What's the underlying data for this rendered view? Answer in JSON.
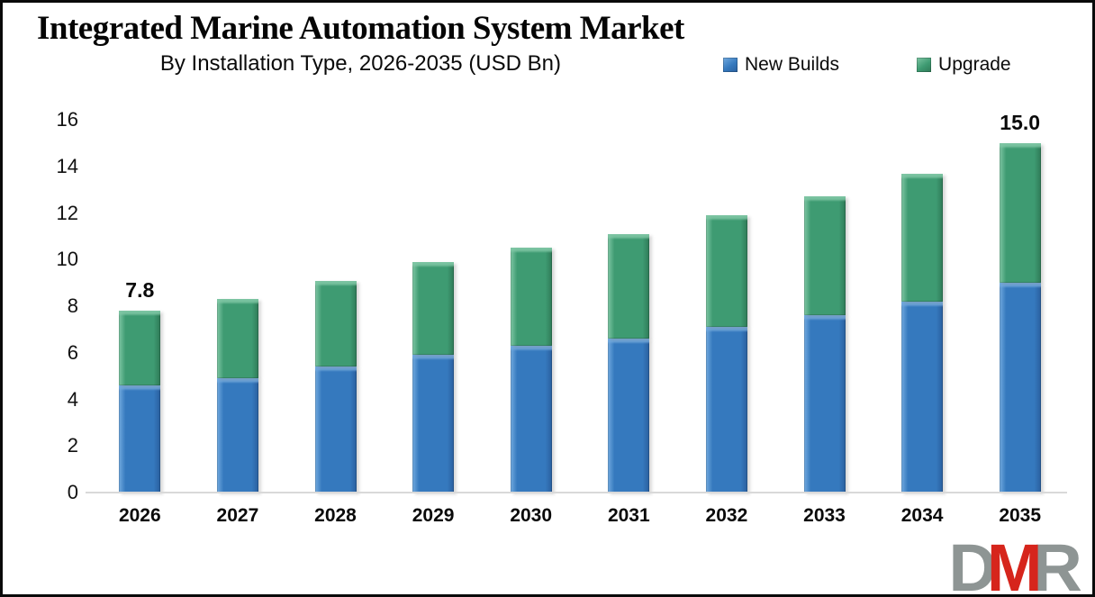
{
  "header": {
    "title": "Integrated Marine Automation System Market",
    "subtitle": "By Installation Type, 2026-2035 (USD Bn)"
  },
  "legend": {
    "position": "top-right",
    "items": [
      {
        "label": "New Builds",
        "color": "#3579BE"
      },
      {
        "label": "Upgrade",
        "color": "#3E9B72"
      }
    ]
  },
  "chart_data": {
    "type": "bar",
    "stacked": true,
    "title": "Integrated Marine Automation System Market",
    "subtitle": "By Installation Type, 2026-2035 (USD Bn)",
    "xlabel": "",
    "ylabel": "",
    "ylim": [
      0,
      16
    ],
    "yticks": [
      0,
      2,
      4,
      6,
      8,
      10,
      12,
      14,
      16
    ],
    "grid": false,
    "legend_position": "top-right",
    "categories": [
      "2026",
      "2027",
      "2028",
      "2029",
      "2030",
      "2031",
      "2032",
      "2033",
      "2034",
      "2035"
    ],
    "series": [
      {
        "name": "New Builds",
        "color": "#3579BE",
        "color_light": "#72AADF",
        "color_dark": "#2A5F9E",
        "values": [
          4.6,
          4.9,
          5.4,
          5.9,
          6.3,
          6.6,
          7.1,
          7.6,
          8.2,
          9.0
        ]
      },
      {
        "name": "Upgrade",
        "color": "#3E9B72",
        "color_light": "#7FC6A4",
        "color_dark": "#2F7A57",
        "values": [
          3.2,
          3.4,
          3.7,
          4.0,
          4.2,
          4.5,
          4.8,
          5.1,
          5.5,
          6.0
        ]
      }
    ],
    "totals": [
      7.8,
      8.3,
      9.1,
      9.9,
      10.5,
      11.1,
      11.9,
      12.7,
      13.7,
      15.0
    ],
    "bar_labels": {
      "first": "7.8",
      "last": "15.0"
    }
  },
  "logo": {
    "letters": [
      {
        "char": "D",
        "color": "#8E9594"
      },
      {
        "char": "M",
        "color": "#D6251C"
      },
      {
        "char": "R",
        "color": "#8E9594"
      }
    ]
  }
}
